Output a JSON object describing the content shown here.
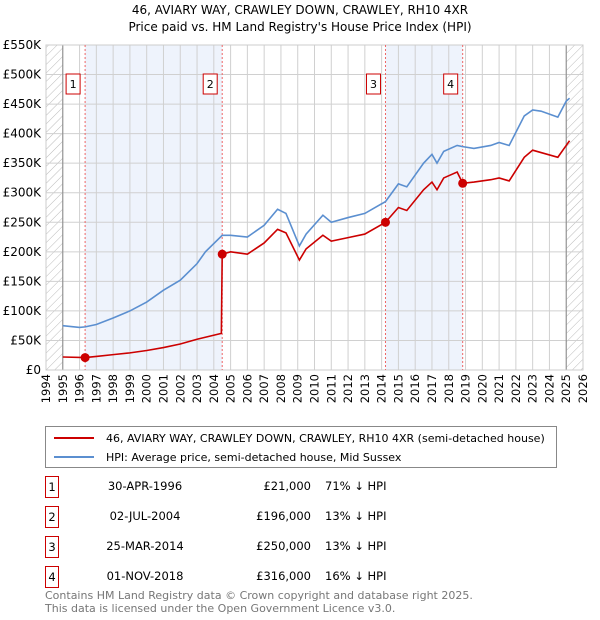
{
  "chart_data": {
    "type": "line",
    "title": "46, AVIARY WAY, CRAWLEY DOWN, CRAWLEY, RH10 4XR",
    "subtitle": "Price paid vs. HM Land Registry's House Price Index (HPI)",
    "xlim": [
      1994,
      2026
    ],
    "ylim": [
      0,
      550000
    ],
    "x_ticks": [
      "1994",
      "1995",
      "1996",
      "1997",
      "1998",
      "1999",
      "2000",
      "2001",
      "2002",
      "2003",
      "2004",
      "2005",
      "2006",
      "2007",
      "2008",
      "2009",
      "2010",
      "2011",
      "2012",
      "2013",
      "2014",
      "2015",
      "2016",
      "2017",
      "2018",
      "2019",
      "2020",
      "2021",
      "2022",
      "2023",
      "2024",
      "2025",
      "2026"
    ],
    "y_ticks": [
      "£0",
      "£50K",
      "£100K",
      "£150K",
      "£200K",
      "£250K",
      "£300K",
      "£350K",
      "£400K",
      "£450K",
      "£500K",
      "£550K"
    ],
    "grid": true,
    "shaded": [
      [
        1996.33,
        2004.5
      ],
      [
        2014.23,
        2018.83
      ]
    ],
    "hatched": [
      [
        1994,
        1995
      ],
      [
        2025,
        2026
      ]
    ],
    "series": [
      {
        "name": "46, AVIARY WAY, CRAWLEY DOWN, CRAWLEY, RH10 4XR (semi-detached house)",
        "color": "#cc0000",
        "x": [
          1995,
          1996.33,
          1997,
          1998,
          1999,
          2000,
          2001,
          2002,
          2003,
          2004.45,
          2004.5,
          2005,
          2006,
          2007,
          2007.8,
          2008.3,
          2009.1,
          2009.5,
          2010.5,
          2011,
          2012,
          2013,
          2014.23,
          2015,
          2015.5,
          2016.5,
          2017,
          2017.3,
          2017.7,
          2018.5,
          2018.83,
          2019.5,
          2020.5,
          2021,
          2021.6,
          2022.5,
          2023,
          2023.5,
          2024.5,
          2025,
          2025.2
        ],
        "y": [
          22000,
          21000,
          23000,
          26000,
          29000,
          33000,
          38000,
          44000,
          52000,
          62000,
          196000,
          200000,
          196000,
          215000,
          238000,
          232000,
          186000,
          205000,
          228000,
          218000,
          224000,
          230000,
          250000,
          275000,
          270000,
          305000,
          318000,
          305000,
          325000,
          335000,
          316000,
          318000,
          322000,
          325000,
          320000,
          360000,
          372000,
          368000,
          360000,
          380000,
          388000
        ]
      },
      {
        "name": "HPI: Average price, semi-detached house, Mid Sussex",
        "color": "#5b8fd0",
        "x": [
          1995,
          1996,
          1996.33,
          1997,
          1998,
          1999,
          2000,
          2001,
          2002,
          2003,
          2003.5,
          2004.5,
          2005,
          2006,
          2007,
          2007.8,
          2008.3,
          2009.1,
          2009.5,
          2010.5,
          2011,
          2012,
          2013,
          2014.23,
          2015,
          2015.5,
          2016.5,
          2017,
          2017.3,
          2017.7,
          2018.5,
          2018.83,
          2019.5,
          2020.5,
          2021,
          2021.6,
          2022.5,
          2023,
          2023.5,
          2024.5,
          2025,
          2025.2
        ],
        "y": [
          75000,
          72000,
          73000,
          77000,
          88000,
          100000,
          115000,
          135000,
          152000,
          180000,
          200000,
          228000,
          228000,
          225000,
          245000,
          272000,
          265000,
          210000,
          230000,
          262000,
          250000,
          258000,
          265000,
          285000,
          315000,
          310000,
          350000,
          365000,
          350000,
          370000,
          380000,
          378000,
          375000,
          380000,
          385000,
          380000,
          430000,
          440000,
          438000,
          428000,
          455000,
          460000
        ]
      }
    ],
    "markers": [
      {
        "label": "1",
        "x": 1996.33,
        "y": 21000
      },
      {
        "label": "2",
        "x": 2004.5,
        "y": 196000
      },
      {
        "label": "3",
        "x": 2014.23,
        "y": 250000
      },
      {
        "label": "4",
        "x": 2018.83,
        "y": 316000
      }
    ]
  },
  "transactions": [
    {
      "num": "1",
      "date": "30-APR-1996",
      "price": "£21,000",
      "hpi": "71% ↓ HPI"
    },
    {
      "num": "2",
      "date": "02-JUL-2004",
      "price": "£196,000",
      "hpi": "13% ↓ HPI"
    },
    {
      "num": "3",
      "date": "25-MAR-2014",
      "price": "£250,000",
      "hpi": "13% ↓ HPI"
    },
    {
      "num": "4",
      "date": "01-NOV-2018",
      "price": "£316,000",
      "hpi": "16% ↓ HPI"
    }
  ],
  "footer": {
    "line1": "Contains HM Land Registry data © Crown copyright and database right 2025.",
    "line2": "This data is licensed under the Open Government Licence v3.0."
  }
}
